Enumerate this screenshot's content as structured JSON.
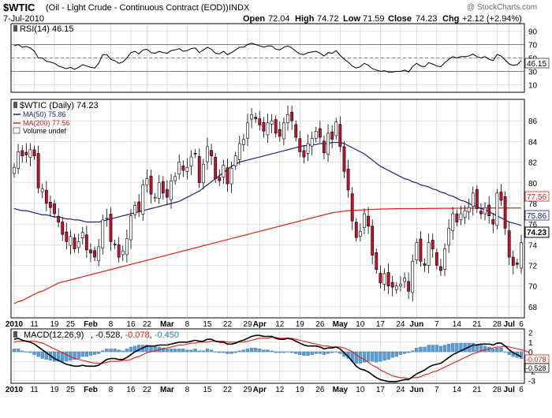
{
  "header": {
    "symbol": "$WTIC",
    "description": "(Oil - Light Crude - Continuous Contract (EOD))",
    "exchange": "INDX",
    "date": "7-Jul-2010",
    "watermark": "@ StockCharts.com",
    "quote": {
      "open_label": "Open",
      "open": "72.04",
      "high_label": "High",
      "high": "74.72",
      "low_label": "Low",
      "low": "71.59",
      "close_label": "Close",
      "close": "74.23",
      "chg_label": "Chg",
      "chg": "+2.12 (+2.94%)"
    }
  },
  "colors": {
    "up": "#ffffff",
    "down": "#c8102e",
    "ma50": "#1a237e",
    "ma200": "#e02010",
    "macd": "#000000",
    "signal": "#e02010",
    "hist": "#5b9bd5",
    "grid": "#c8c8c8"
  },
  "months": {
    "labels": [
      "2010",
      "11",
      "19",
      "25",
      "Feb",
      "8",
      "16",
      "22",
      "Mar",
      "8",
      "15",
      "22",
      "29",
      "Apr",
      "12",
      "19",
      "26",
      "May",
      "10",
      "17",
      "24",
      "Jun",
      "7",
      "14",
      "21",
      "28",
      "Jul",
      "6"
    ],
    "x_idx": [
      0,
      5,
      10,
      14,
      19,
      24,
      29,
      33,
      38,
      43,
      48,
      53,
      58,
      61,
      66,
      71,
      76,
      81,
      86,
      91,
      96,
      100,
      105,
      110,
      115,
      120,
      123,
      126
    ]
  },
  "rsi": {
    "label": "RSI(14) 46.15",
    "last": "46.15",
    "ticks": [
      10,
      30,
      50,
      70,
      90
    ],
    "overbought": 70,
    "oversold": 30
  },
  "price": {
    "legend_title": "$WTIC (Daily) 74.23",
    "legend_ma50": "MA(50) 75.86",
    "legend_ma200": "MA(200) 77.56",
    "legend_volume": "Volume undef",
    "badge_close": "74.23",
    "badge_ma50": "75.86",
    "badge_ma200": "77.56",
    "ticks": [
      68,
      70,
      72,
      74,
      76,
      78,
      80,
      82,
      84,
      86
    ]
  },
  "macd": {
    "label": "MACD(12,26,9)",
    "macd_val": "-0.528",
    "signal_val": "-0.078",
    "hist_val": "-0.450",
    "badge_signal": "-0.078",
    "badge_macd": "-0.528",
    "ticks": [
      -3,
      -2,
      -1,
      0,
      1,
      2
    ]
  },
  "chart_data": {
    "type": "candlestick",
    "title": "$WTIC (Oil - Light Crude - Continuous Contract (EOD)) INDX",
    "ohlc_summary": {
      "open": 72.04,
      "high": 74.72,
      "low": 71.59,
      "close": 74.23
    },
    "ylim_price": [
      67,
      88
    ],
    "ylim_rsi": [
      0,
      100
    ],
    "ylim_macd": [
      -3.2,
      2.3
    ],
    "closes": [
      81.5,
      83.0,
      82.6,
      82.7,
      83.2,
      82.6,
      79.5,
      79.4,
      78.0,
      77.6,
      77.0,
      76.2,
      75.0,
      74.3,
      74.8,
      73.6,
      74.3,
      75.2,
      73.5,
      73.2,
      72.8,
      73.8,
      76.4,
      76.6,
      74.3,
      74.0,
      72.8,
      73.4,
      74.6,
      76.8,
      77.8,
      77.2,
      79.8,
      80.4,
      78.9,
      78.6,
      80.0,
      79.0,
      78.6,
      80.2,
      80.6,
      82.0,
      81.2,
      81.5,
      82.5,
      82.8,
      80.0,
      81.8,
      83.5,
      82.6,
      80.4,
      80.2,
      81.7,
      79.9,
      81.4,
      82.6,
      83.8,
      84.2,
      85.8,
      86.6,
      86.2,
      85.6,
      85.0,
      85.8,
      86.0,
      84.8,
      84.5,
      85.8,
      86.6,
      86.0,
      84.4,
      83.0,
      82.5,
      83.8,
      84.3,
      85.0,
      84.4,
      82.9,
      84.8,
      84.2,
      85.9,
      83.5,
      81.1,
      79.3,
      76.3,
      74.7,
      75.3,
      77.0,
      75.8,
      73.0,
      71.6,
      70.3,
      71.2,
      70.0,
      69.9,
      70.0,
      70.2,
      70.8,
      69.5,
      72.4,
      74.2,
      72.4,
      72.0,
      74.2,
      73.6,
      72.0,
      71.5,
      73.6,
      75.6,
      77.0,
      76.2,
      77.0,
      77.3,
      77.6,
      79.0,
      77.5,
      77.0,
      77.6,
      76.8,
      76.0,
      79.0,
      78.3,
      75.6,
      72.8,
      72.0,
      72.1,
      74.2
    ],
    "ma50": [
      77.5,
      77.4,
      77.3,
      77.3,
      77.2,
      77.1,
      77.0,
      76.9,
      76.9,
      76.8,
      76.7,
      76.7,
      76.6,
      76.5,
      76.5,
      76.4,
      76.4,
      76.3,
      76.2,
      76.2,
      76.2,
      76.2,
      76.3,
      76.4,
      76.5,
      76.6,
      76.7,
      76.8,
      76.9,
      77.0,
      77.1,
      77.2,
      77.3,
      77.4,
      77.5,
      77.6,
      77.7,
      77.8,
      77.9,
      78.0,
      78.1,
      78.2,
      78.4,
      78.6,
      78.8,
      79.0,
      79.2,
      79.5,
      79.8,
      80.1,
      80.4,
      80.7,
      81.0,
      81.3,
      81.6,
      81.8,
      82.0,
      82.1,
      82.2,
      82.3,
      82.4,
      82.5,
      82.6,
      82.7,
      82.8,
      82.9,
      83.0,
      83.1,
      83.2,
      83.3,
      83.4,
      83.5,
      83.6,
      83.6,
      83.7,
      83.7,
      83.8,
      83.8,
      83.8,
      83.9,
      83.9,
      83.9,
      83.8,
      83.6,
      83.4,
      83.2,
      83.0,
      82.8,
      82.5,
      82.2,
      81.9,
      81.6,
      81.4,
      81.2,
      81.0,
      80.8,
      80.6,
      80.4,
      80.3,
      80.1,
      80.0,
      79.8,
      79.7,
      79.6,
      79.4,
      79.3,
      79.1,
      79.0,
      78.8,
      78.7,
      78.5,
      78.3,
      78.2,
      78.0,
      77.8,
      77.7,
      77.5,
      77.4,
      77.2,
      77.0,
      76.8,
      76.6,
      76.4,
      76.2,
      76.1,
      76.0,
      75.86
    ],
    "ma200": [
      68.3,
      68.5,
      68.6,
      68.8,
      69.0,
      69.2,
      69.4,
      69.5,
      69.7,
      69.9,
      70.1,
      70.3,
      70.4,
      70.5,
      70.6,
      70.7,
      70.8,
      70.9,
      71.0,
      71.1,
      71.2,
      71.3,
      71.4,
      71.5,
      71.6,
      71.7,
      71.8,
      71.9,
      72.0,
      72.1,
      72.2,
      72.3,
      72.4,
      72.5,
      72.6,
      72.7,
      72.8,
      72.9,
      73.0,
      73.1,
      73.2,
      73.3,
      73.4,
      73.5,
      73.6,
      73.7,
      73.8,
      73.9,
      74.0,
      74.1,
      74.2,
      74.3,
      74.4,
      74.5,
      74.6,
      74.7,
      74.8,
      74.9,
      75.0,
      75.1,
      75.2,
      75.3,
      75.4,
      75.5,
      75.6,
      75.7,
      75.8,
      75.9,
      76.0,
      76.1,
      76.2,
      76.3,
      76.4,
      76.5,
      76.6,
      76.7,
      76.8,
      76.9,
      77.0,
      77.1,
      77.15,
      77.2,
      77.25,
      77.3,
      77.32,
      77.34,
      77.36,
      77.38,
      77.4,
      77.42,
      77.44,
      77.45,
      77.46,
      77.47,
      77.48,
      77.49,
      77.5,
      77.5,
      77.5,
      77.5,
      77.5,
      77.51,
      77.51,
      77.52,
      77.52,
      77.52,
      77.53,
      77.53,
      77.53,
      77.54,
      77.54,
      77.54,
      77.55,
      77.55,
      77.55,
      77.55,
      77.55,
      77.56,
      77.56,
      77.56,
      77.56,
      77.56,
      77.56,
      77.56,
      77.56,
      77.56,
      77.56
    ],
    "rsi_values": [
      68,
      70,
      66,
      67,
      65,
      60,
      50,
      50,
      45,
      44,
      42,
      38,
      36,
      34,
      36,
      33,
      36,
      40,
      38,
      36,
      35,
      42,
      55,
      55,
      48,
      46,
      42,
      44,
      50,
      58,
      60,
      56,
      62,
      63,
      58,
      57,
      60,
      58,
      57,
      61,
      62,
      64,
      60,
      61,
      64,
      65,
      58,
      62,
      66,
      63,
      57,
      56,
      60,
      55,
      58,
      62,
      66,
      66,
      70,
      72,
      70,
      68,
      66,
      68,
      68,
      63,
      62,
      66,
      68,
      65,
      60,
      56,
      55,
      58,
      59,
      60,
      57,
      53,
      58,
      57,
      61,
      54,
      48,
      44,
      38,
      35,
      37,
      42,
      39,
      34,
      32,
      30,
      31,
      29,
      29,
      30,
      30,
      32,
      29,
      37,
      42,
      38,
      37,
      43,
      41,
      38,
      37,
      43,
      48,
      52,
      50,
      52,
      52,
      53,
      56,
      52,
      50,
      52,
      48,
      46,
      55,
      53,
      47,
      41,
      39,
      40,
      46
    ],
    "macd_values": [
      1.3,
      1.4,
      1.2,
      1.1,
      1.0,
      0.8,
      0.5,
      0.2,
      -0.1,
      -0.4,
      -0.7,
      -0.9,
      -1.1,
      -1.3,
      -1.4,
      -1.5,
      -1.5,
      -1.4,
      -1.5,
      -1.5,
      -1.5,
      -1.4,
      -1.1,
      -0.8,
      -0.7,
      -0.7,
      -0.8,
      -0.8,
      -0.6,
      -0.3,
      0.0,
      0.2,
      0.4,
      0.6,
      0.6,
      0.6,
      0.7,
      0.7,
      0.7,
      0.8,
      0.9,
      1.0,
      1.0,
      1.0,
      1.1,
      1.2,
      1.1,
      1.1,
      1.3,
      1.3,
      1.1,
      1.0,
      1.0,
      0.8,
      0.8,
      0.9,
      1.1,
      1.2,
      1.4,
      1.6,
      1.7,
      1.7,
      1.6,
      1.6,
      1.6,
      1.4,
      1.3,
      1.3,
      1.4,
      1.3,
      1.1,
      0.9,
      0.7,
      0.6,
      0.6,
      0.6,
      0.5,
      0.3,
      0.4,
      0.4,
      0.5,
      0.3,
      -0.1,
      -0.5,
      -1.0,
      -1.5,
      -1.8,
      -1.9,
      -2.1,
      -2.4,
      -2.7,
      -2.9,
      -3.0,
      -3.1,
      -3.1,
      -3.1,
      -3.0,
      -2.9,
      -2.9,
      -2.6,
      -2.3,
      -2.1,
      -1.9,
      -1.6,
      -1.4,
      -1.3,
      -1.2,
      -0.9,
      -0.6,
      -0.3,
      -0.1,
      0.1,
      0.3,
      0.5,
      0.7,
      0.7,
      0.8,
      0.8,
      0.8,
      0.7,
      0.9,
      0.9,
      0.6,
      0.2,
      -0.1,
      -0.3,
      -0.528
    ],
    "signal_values": [
      1.0,
      1.1,
      1.1,
      1.1,
      1.1,
      1.1,
      1.0,
      0.9,
      0.7,
      0.5,
      0.3,
      0.1,
      -0.1,
      -0.3,
      -0.5,
      -0.7,
      -0.8,
      -0.9,
      -1.0,
      -1.1,
      -1.2,
      -1.2,
      -1.2,
      -1.1,
      -1.0,
      -1.0,
      -1.0,
      -0.9,
      -0.9,
      -0.8,
      -0.6,
      -0.5,
      -0.3,
      -0.1,
      0.0,
      0.1,
      0.2,
      0.3,
      0.4,
      0.5,
      0.6,
      0.7,
      0.7,
      0.8,
      0.9,
      0.9,
      1.0,
      1.0,
      1.0,
      1.1,
      1.1,
      1.1,
      1.1,
      1.0,
      1.0,
      1.0,
      1.0,
      1.0,
      1.1,
      1.2,
      1.3,
      1.4,
      1.4,
      1.4,
      1.5,
      1.5,
      1.4,
      1.4,
      1.4,
      1.4,
      1.3,
      1.2,
      1.1,
      1.0,
      0.9,
      0.8,
      0.7,
      0.6,
      0.6,
      0.5,
      0.5,
      0.5,
      0.4,
      0.2,
      0.0,
      -0.3,
      -0.6,
      -0.8,
      -1.1,
      -1.4,
      -1.6,
      -1.9,
      -2.1,
      -2.3,
      -2.5,
      -2.6,
      -2.7,
      -2.7,
      -2.8,
      -2.7,
      -2.7,
      -2.6,
      -2.4,
      -2.3,
      -2.1,
      -2.0,
      -1.8,
      -1.6,
      -1.4,
      -1.2,
      -1.0,
      -0.8,
      -0.6,
      -0.4,
      -0.2,
      -0.1,
      0.1,
      0.2,
      0.3,
      0.4,
      0.5,
      0.5,
      0.6,
      0.5,
      0.4,
      0.3,
      0.2,
      0.1,
      -0.078
    ]
  }
}
